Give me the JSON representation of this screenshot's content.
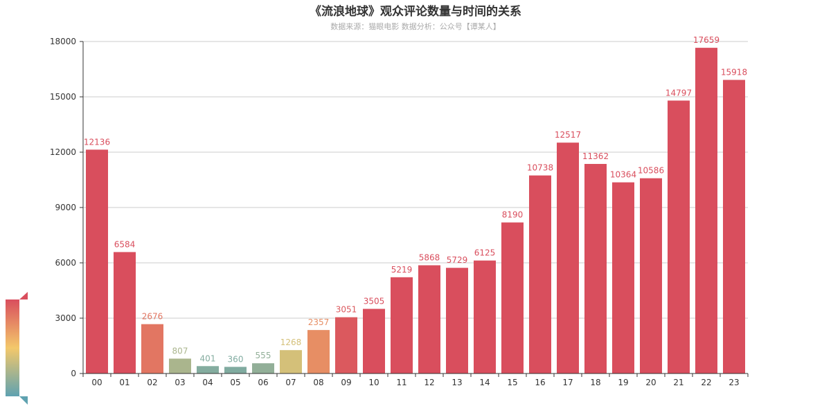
{
  "chart_data": {
    "type": "bar",
    "title": "《流浪地球》观众评论数量与时间的关系",
    "subtitle": "数据来源：猫眼电影 数据分析：公众号【谭某人】",
    "categories": [
      "00",
      "01",
      "02",
      "03",
      "04",
      "05",
      "06",
      "07",
      "08",
      "09",
      "10",
      "11",
      "12",
      "13",
      "14",
      "15",
      "16",
      "17",
      "18",
      "19",
      "20",
      "21",
      "22",
      "23"
    ],
    "values": [
      12136,
      6584,
      2676,
      807,
      401,
      360,
      555,
      1268,
      2357,
      3051,
      3505,
      5219,
      5868,
      5729,
      6125,
      8190,
      10738,
      12517,
      11362,
      10364,
      10586,
      14797,
      17659,
      15918
    ],
    "ylim": [
      0,
      18000
    ],
    "yticks": [
      0,
      3000,
      6000,
      9000,
      12000,
      15000,
      18000
    ],
    "grid": true,
    "visual_map": {
      "range": [
        0,
        3200
      ],
      "colors": [
        "#5fa2b0",
        "#f3c86b",
        "#d94e5d"
      ]
    }
  }
}
